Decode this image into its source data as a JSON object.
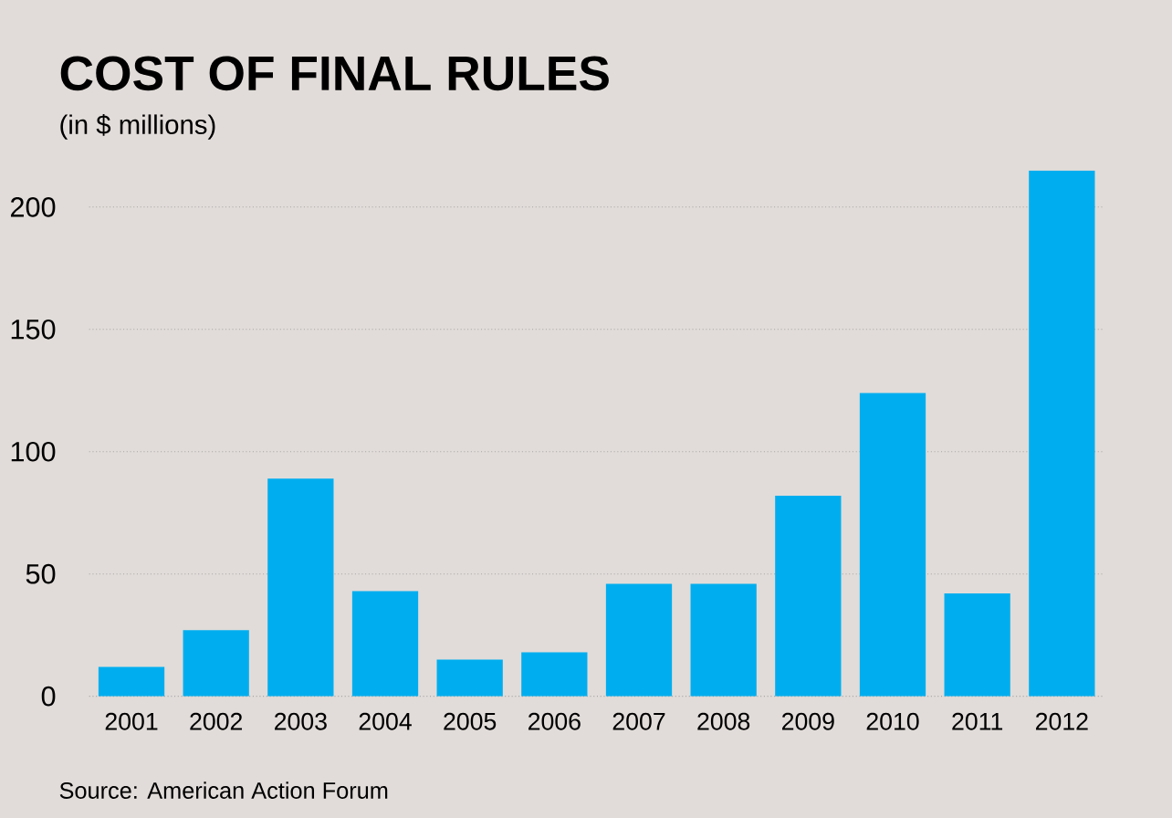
{
  "chart_data": {
    "type": "bar",
    "title": "COST OF FINAL RULES",
    "subtitle": "(in $ millions)",
    "categories": [
      "2001",
      "2002",
      "2003",
      "2004",
      "2005",
      "2006",
      "2007",
      "2008",
      "2009",
      "2010",
      "2011",
      "2012"
    ],
    "values": [
      12,
      27,
      89,
      43,
      15,
      18,
      46,
      46,
      82,
      124,
      42,
      215
    ],
    "color": "#00aeef",
    "ylim": [
      0,
      215
    ],
    "yticks": [
      0,
      50,
      100,
      150,
      200
    ],
    "grid": "y",
    "annotations": [
      "Source: American Action Forum"
    ]
  }
}
